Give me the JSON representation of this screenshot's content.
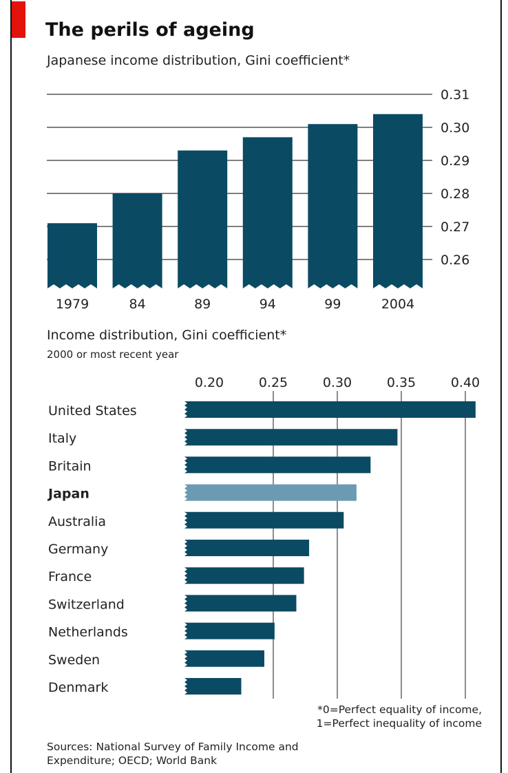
{
  "chart_data": [
    {
      "type": "bar",
      "title": "The perils of ageing",
      "subtitle": "Japanese income distribution, Gini coefficient*",
      "categories": [
        "1979",
        "84",
        "89",
        "94",
        "99",
        "2004"
      ],
      "values": [
        0.271,
        0.28,
        0.293,
        0.297,
        0.301,
        0.304
      ],
      "ylim": [
        0.25,
        0.31
      ],
      "yticks": [
        "0.31",
        "0.30",
        "0.29",
        "0.28",
        "0.27",
        "0.26"
      ],
      "ytick_values": [
        0.31,
        0.3,
        0.29,
        0.28,
        0.27,
        0.26
      ],
      "grid": true,
      "axis_side": "right",
      "bar_color": "#0b4a63"
    },
    {
      "type": "bar",
      "orientation": "horizontal",
      "title": "Income distribution, Gini coefficient*",
      "subtitle": "2000 or most recent year",
      "categories": [
        "United States",
        "Italy",
        "Britain",
        "Japan",
        "Australia",
        "Germany",
        "France",
        "Switzerland",
        "Netherlands",
        "Sweden",
        "Denmark"
      ],
      "values": [
        0.408,
        0.347,
        0.326,
        0.315,
        0.305,
        0.278,
        0.274,
        0.268,
        0.251,
        0.243,
        0.225
      ],
      "highlight": "Japan",
      "xlim": [
        0.13,
        0.42
      ],
      "xticks": [
        "0.20",
        "0.25",
        "0.30",
        "0.35",
        "0.40"
      ],
      "xtick_values": [
        0.2,
        0.25,
        0.3,
        0.35,
        0.4
      ],
      "grid": true,
      "axis_side": "top",
      "bar_color": "#0b4a63",
      "highlight_color": "#6b9bb2"
    }
  ],
  "footnote": {
    "line1": "*0=Perfect equality of income,",
    "line2": "1=Perfect inequality of income"
  },
  "sources": {
    "line1": "Sources: National Survey of Family Income and",
    "line2": "Expenditure; OECD; World Bank"
  }
}
